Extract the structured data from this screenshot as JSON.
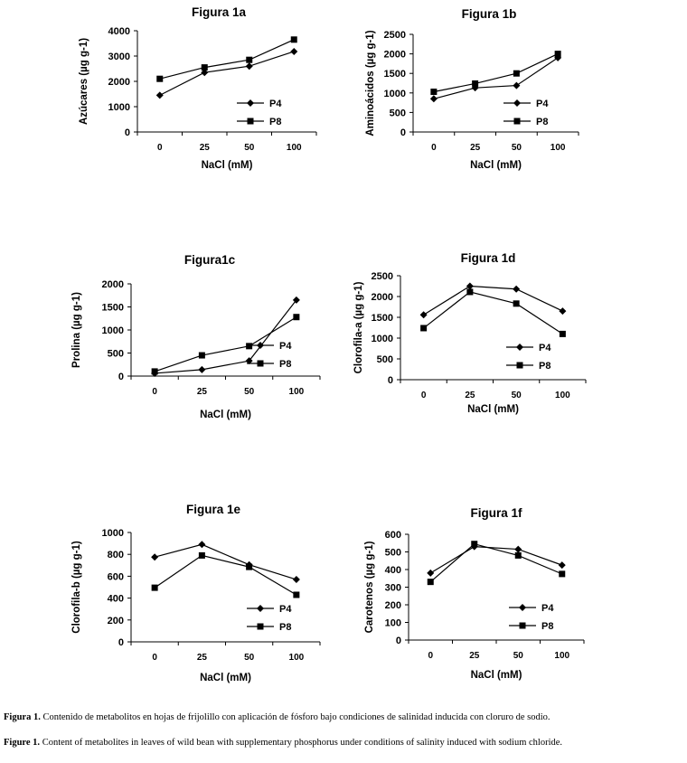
{
  "chart_data": [
    {
      "type": "line",
      "title": "Figura 1a",
      "ylabel": "Azúcares (µg g-1)",
      "xlabel": "NaCl (mM)",
      "categories": [
        "0",
        "25",
        "50",
        "100"
      ],
      "ylim": [
        0,
        4000
      ],
      "yticks": [
        "0",
        "1000",
        "2000",
        "3000",
        "4000"
      ],
      "legend": "bottom-right",
      "series": [
        {
          "name": "P4",
          "marker": "diamond",
          "values": [
            1450,
            2350,
            2600,
            3180
          ]
        },
        {
          "name": "P8",
          "marker": "square",
          "values": [
            2100,
            2550,
            2850,
            3650
          ]
        }
      ]
    },
    {
      "type": "line",
      "title": "Figura 1b",
      "ylabel": "Aminoácidos (µg g-1)",
      "xlabel": "NaCl (mM)",
      "categories": [
        "0",
        "25",
        "50",
        "100"
      ],
      "ylim": [
        0,
        2500
      ],
      "yticks": [
        "0",
        "500",
        "1000",
        "1500",
        "2000",
        "2500"
      ],
      "legend": "bottom-right",
      "series": [
        {
          "name": "P4",
          "marker": "diamond",
          "values": [
            850,
            1130,
            1190,
            1900
          ]
        },
        {
          "name": "P8",
          "marker": "square",
          "values": [
            1030,
            1240,
            1500,
            2000
          ]
        }
      ]
    },
    {
      "type": "line",
      "title": "Figura1c",
      "ylabel": "Prolina (µg g-1)",
      "xlabel": "NaCl (mM)",
      "categories": [
        "0",
        "25",
        "50",
        "100"
      ],
      "ylim": [
        0,
        2000
      ],
      "yticks": [
        "0",
        "500",
        "1000",
        "1500",
        "2000"
      ],
      "legend": "bottom-right",
      "series": [
        {
          "name": "P4",
          "marker": "diamond",
          "values": [
            60,
            140,
            330,
            1650
          ]
        },
        {
          "name": "P8",
          "marker": "square",
          "values": [
            100,
            450,
            650,
            1280
          ]
        }
      ]
    },
    {
      "type": "line",
      "title": "Figura 1d",
      "ylabel": "Clorofila-a (µg g-1)",
      "xlabel": "NaCl (mM)",
      "categories": [
        "0",
        "25",
        "50",
        "100"
      ],
      "ylim": [
        0,
        2500
      ],
      "yticks": [
        "0",
        "500",
        "1000",
        "1500",
        "2000",
        "2500"
      ],
      "legend": "bottom-right",
      "series": [
        {
          "name": "P4",
          "marker": "diamond",
          "values": [
            1560,
            2250,
            2180,
            1650
          ]
        },
        {
          "name": "P8",
          "marker": "square",
          "values": [
            1240,
            2110,
            1830,
            1100
          ]
        }
      ]
    },
    {
      "type": "line",
      "title": "Figura 1e",
      "ylabel": "Clorofila-b (µg g-1)",
      "xlabel": "NaCl (mM)",
      "categories": [
        "0",
        "25",
        "50",
        "100"
      ],
      "ylim": [
        0,
        1000
      ],
      "yticks": [
        "0",
        "200",
        "400",
        "600",
        "800",
        "1000"
      ],
      "legend": "bottom-right",
      "series": [
        {
          "name": "P4",
          "marker": "diamond",
          "values": [
            775,
            890,
            705,
            570
          ]
        },
        {
          "name": "P8",
          "marker": "square",
          "values": [
            495,
            790,
            685,
            430
          ]
        }
      ]
    },
    {
      "type": "line",
      "title": "Figura 1f",
      "ylabel": "Carotenos (µg g-1)",
      "xlabel": "NaCl (mM)",
      "categories": [
        "0",
        "25",
        "50",
        "100"
      ],
      "ylim": [
        0,
        600
      ],
      "yticks": [
        "0",
        "100",
        "200",
        "300",
        "400",
        "500",
        "600"
      ],
      "legend": "bottom-right",
      "series": [
        {
          "name": "P4",
          "marker": "diamond",
          "values": [
            380,
            530,
            515,
            425
          ]
        },
        {
          "name": "P8",
          "marker": "square",
          "values": [
            330,
            545,
            480,
            375
          ]
        }
      ]
    }
  ],
  "caption": {
    "es_label": "Figura 1.",
    "es_text": "Contenido de metabolitos en hojas de frijolillo con aplicación de fósforo bajo condiciones de salinidad inducida con cloruro de sodio.",
    "en_label": "Figure 1.",
    "en_text": "Content of metabolites in leaves of wild bean with supplementary phosphorus under conditions of salinity induced with sodium chloride."
  }
}
